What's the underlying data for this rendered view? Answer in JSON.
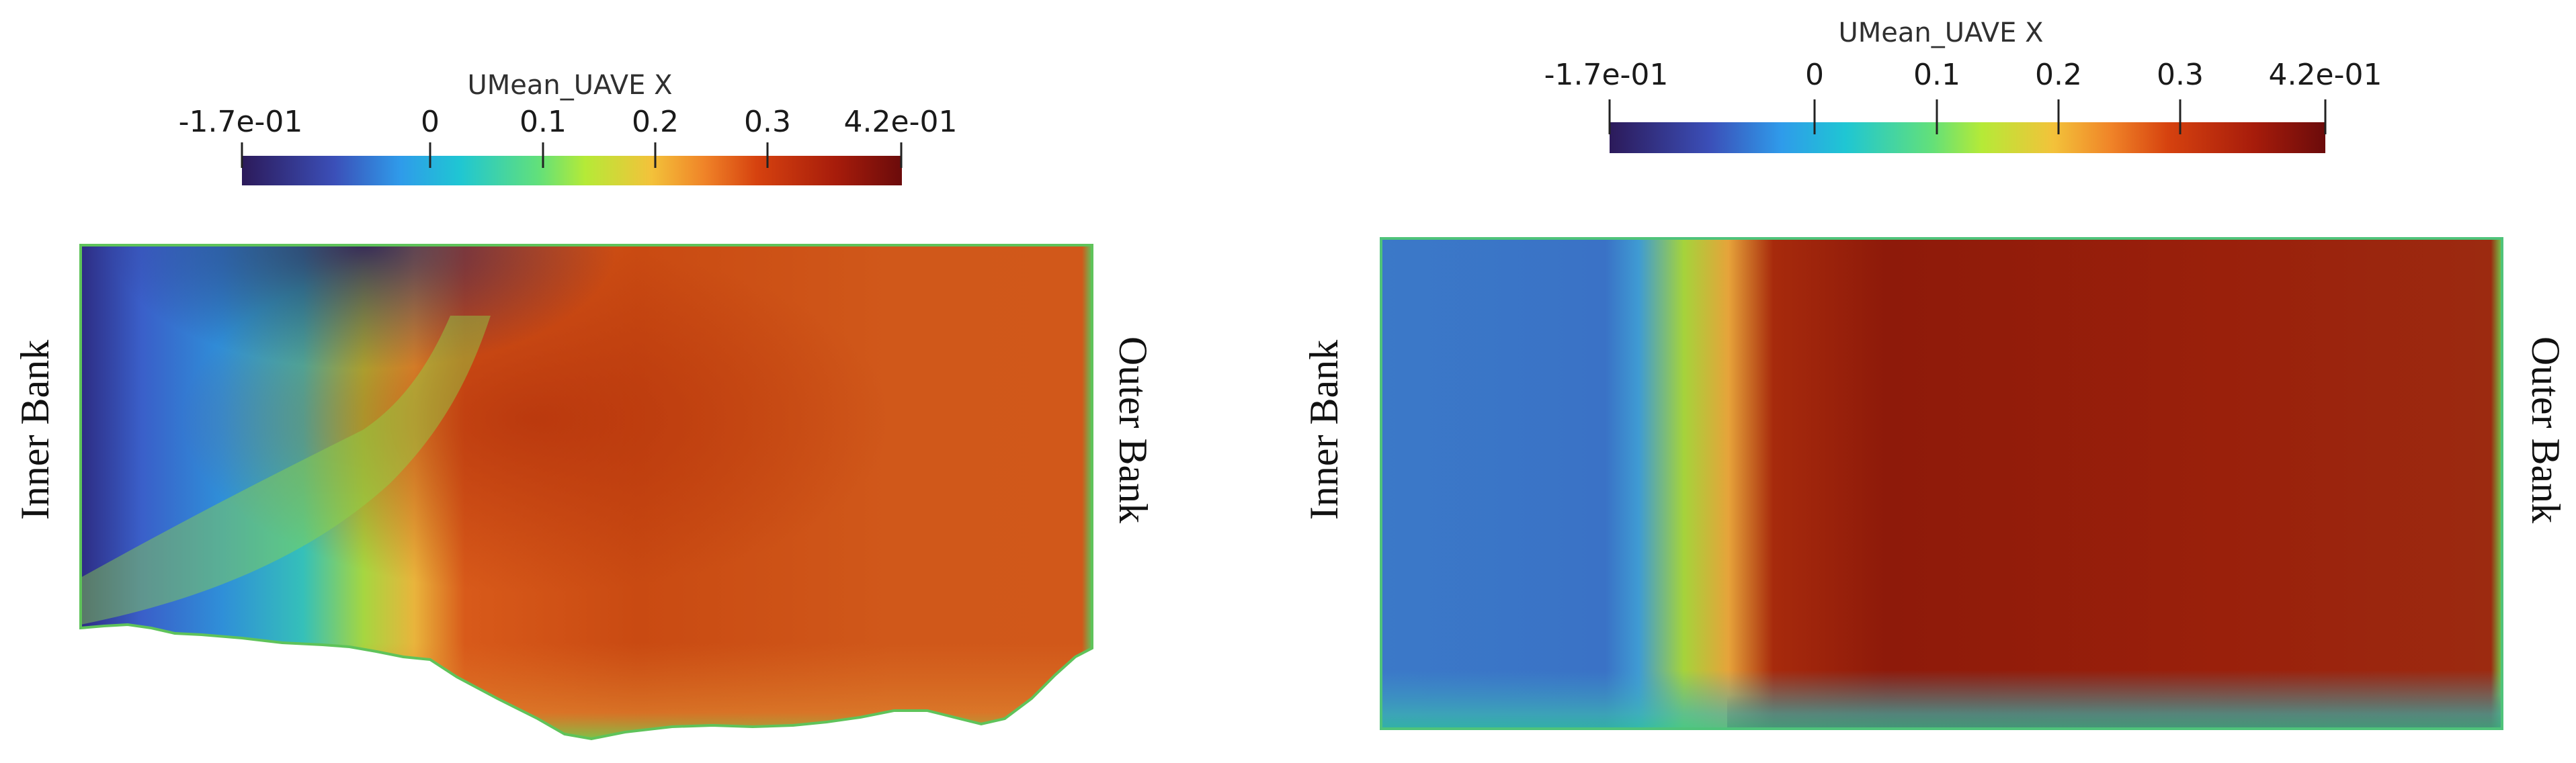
{
  "left_panel": {
    "colorbar": {
      "title": "UMean_UAVE X",
      "ticks": [
        "-1.7e-01",
        "0",
        "0.1",
        "0.2",
        "0.3",
        "4.2e-01"
      ]
    },
    "inner_label": "Inner Bank",
    "outer_label": "Outer Bank"
  },
  "right_panel": {
    "colorbar": {
      "title": "UMean_UAVE X",
      "ticks": [
        "-1.7e-01",
        "0",
        "0.1",
        "0.2",
        "0.3",
        "4.2e-01"
      ]
    },
    "inner_label": "Inner Bank",
    "outer_label": "Outer Bank"
  },
  "colormap": {
    "range": [
      -0.17,
      0.42
    ],
    "stops": [
      "#2c1a5a",
      "#3b6fe0",
      "#1fc6d3",
      "#a6ea3a",
      "#f0c23a",
      "#e5601a",
      "#c2300a",
      "#6b0b0b"
    ]
  }
}
